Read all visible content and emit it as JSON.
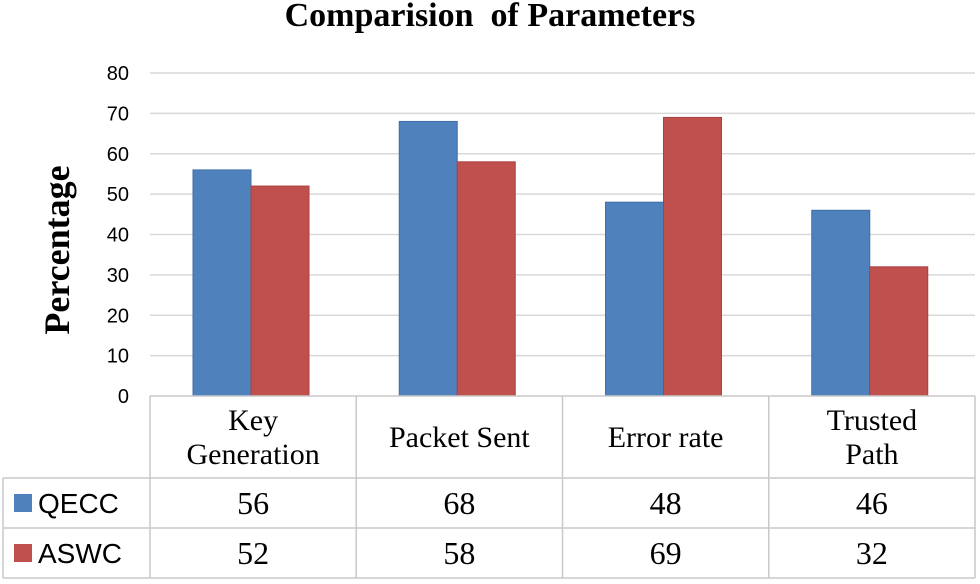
{
  "chart_data": {
    "type": "bar",
    "title": "Comparision  of Parameters",
    "ylabel": "Percentage",
    "xlabel": "",
    "ylim": [
      0,
      80
    ],
    "yticks": [
      "0",
      "10",
      "20",
      "30",
      "40",
      "50",
      "60",
      "70",
      "80"
    ],
    "grid": true,
    "legend": "data-table-left",
    "categories": [
      [
        "Key",
        "Generation"
      ],
      [
        "Packet Sent"
      ],
      [
        "Error rate"
      ],
      [
        "Trusted",
        "Path"
      ]
    ],
    "series": [
      {
        "name": "QECC",
        "color": "#4f81bd",
        "values": [
          56,
          68,
          48,
          46
        ]
      },
      {
        "name": "ASWC",
        "color": "#c0504d",
        "values": [
          52,
          58,
          69,
          32
        ]
      }
    ]
  }
}
